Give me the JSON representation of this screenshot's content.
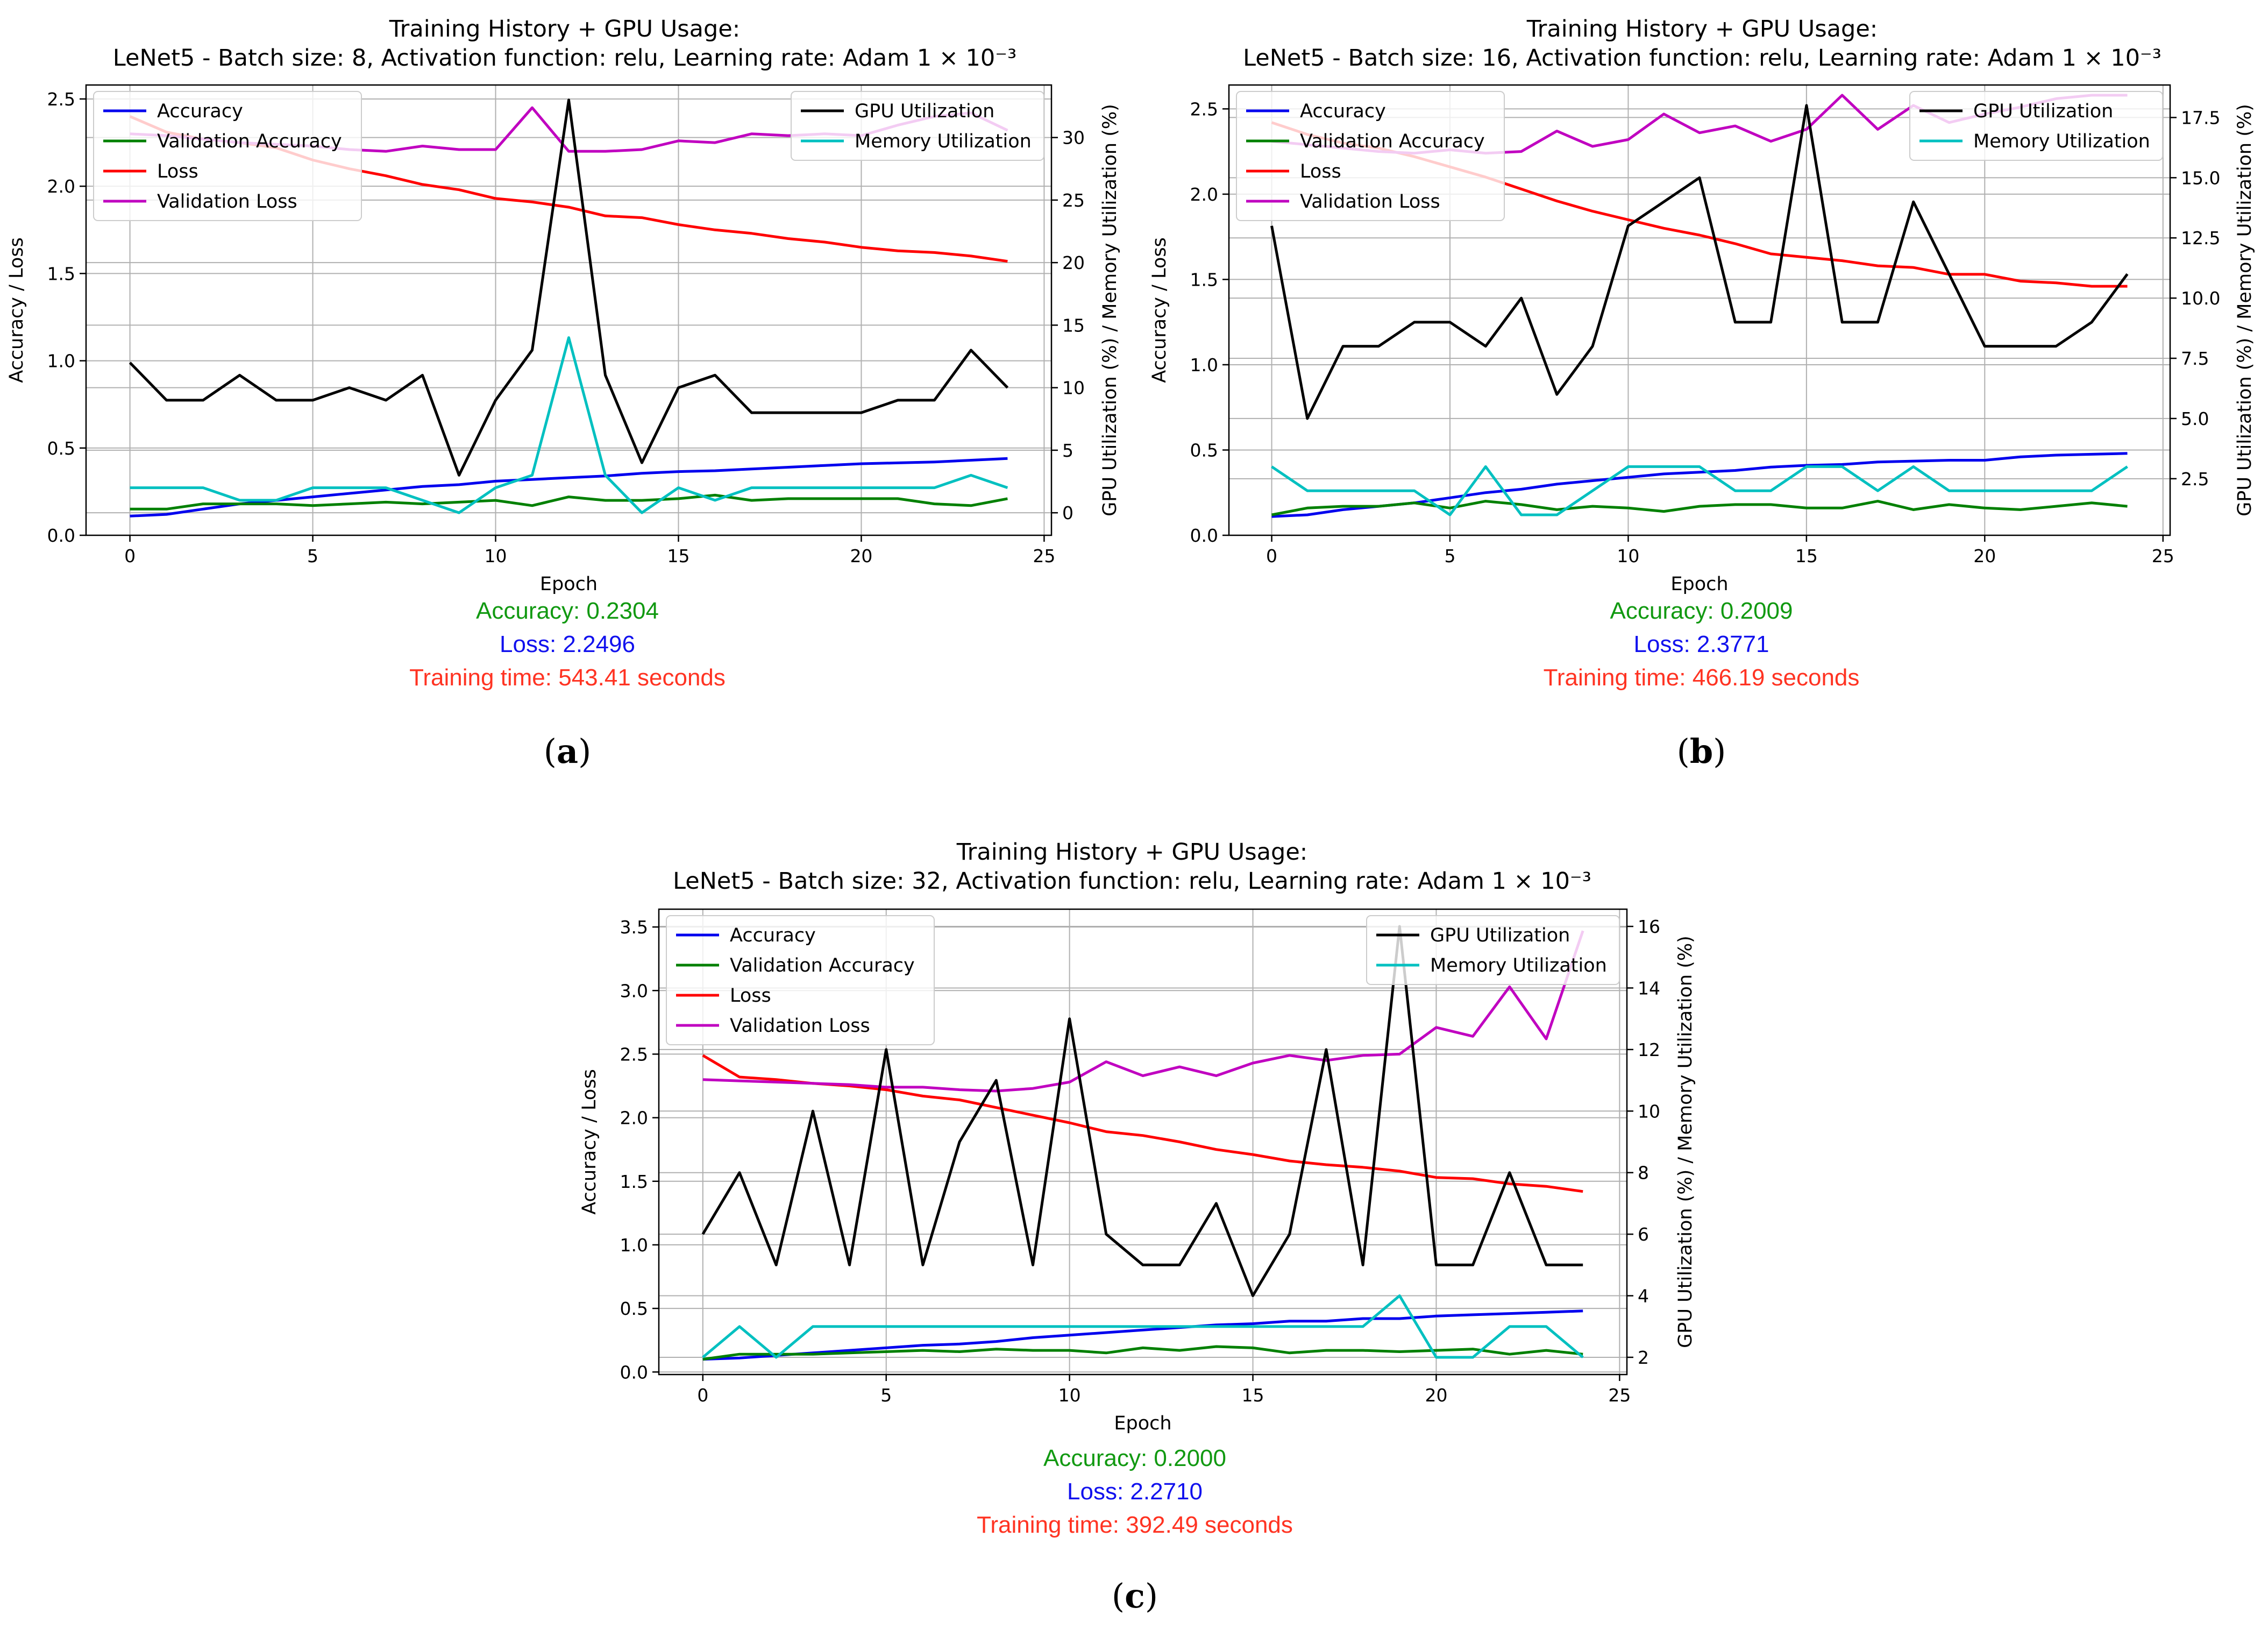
{
  "figure": {
    "panels": [
      {
        "id": "a",
        "sublabel": "a",
        "stats": {
          "accuracy": "Accuracy: 0.2304",
          "loss": "Loss: 2.2496",
          "time": "Training time: 543.41 seconds"
        },
        "colors": {
          "accuracy": "#0000ee",
          "val_accuracy": "#008000",
          "loss": "#ff0000",
          "val_loss": "#c000c0",
          "gpu": "#000000",
          "memory": "#00c0c0"
        }
      },
      {
        "id": "b",
        "sublabel": "b",
        "stats": {
          "accuracy": "Accuracy: 0.2009",
          "loss": "Loss: 2.3771",
          "time": "Training time: 466.19 seconds"
        }
      },
      {
        "id": "c",
        "sublabel": "c",
        "stats": {
          "accuracy": "Accuracy: 0.2000",
          "loss": "Loss: 2.2710",
          "time": "Training time: 392.49 seconds"
        }
      }
    ]
  },
  "chart_data": [
    {
      "type": "line",
      "title": "Training History + GPU Usage:",
      "subtitle": "LeNet5 - Batch size: 8, Activation function: relu, Learning rate: Adam 1 × 10⁻³",
      "xlabel": "Epoch",
      "ylabel": "Accuracy / Loss",
      "y2label": "GPU Utilization (%) / Memory Utilization (%)",
      "xlim": [
        -1.2,
        25.2
      ],
      "ylim": [
        0,
        2.58
      ],
      "y2lim": [
        -1.8,
        34.2
      ],
      "xticks": [
        0,
        5,
        10,
        15,
        20,
        25
      ],
      "yticks": [
        0.0,
        0.5,
        1.0,
        1.5,
        2.0,
        2.5
      ],
      "yticklabels": [
        "0.0",
        "0.5",
        "1.0",
        "1.5",
        "2.0",
        "2.5"
      ],
      "y2ticks": [
        0,
        5,
        10,
        15,
        20,
        25,
        30
      ],
      "y2ticklabels": [
        "0",
        "5",
        "10",
        "15",
        "20",
        "25",
        "30"
      ],
      "grid": true,
      "legend_left_position": "upper-left",
      "legend_right_position": "upper-right",
      "x": [
        0,
        1,
        2,
        3,
        4,
        5,
        6,
        7,
        8,
        9,
        10,
        11,
        12,
        13,
        14,
        15,
        16,
        17,
        18,
        19,
        20,
        21,
        22,
        23,
        24
      ],
      "series": [
        {
          "name": "Accuracy",
          "axis": "left",
          "color": "#0000ee",
          "values": [
            0.11,
            0.12,
            0.15,
            0.18,
            0.2,
            0.22,
            0.24,
            0.26,
            0.28,
            0.29,
            0.31,
            0.32,
            0.33,
            0.34,
            0.355,
            0.365,
            0.37,
            0.38,
            0.39,
            0.4,
            0.41,
            0.415,
            0.42,
            0.43,
            0.44
          ]
        },
        {
          "name": "Validation Accuracy",
          "axis": "left",
          "color": "#008000",
          "values": [
            0.15,
            0.15,
            0.18,
            0.18,
            0.18,
            0.17,
            0.18,
            0.19,
            0.18,
            0.19,
            0.2,
            0.17,
            0.22,
            0.2,
            0.2,
            0.21,
            0.23,
            0.2,
            0.21,
            0.21,
            0.21,
            0.21,
            0.18,
            0.17,
            0.21
          ]
        },
        {
          "name": "Loss",
          "axis": "left",
          "color": "#ff0000",
          "values": [
            2.4,
            2.31,
            2.27,
            2.25,
            2.22,
            2.15,
            2.1,
            2.06,
            2.01,
            1.98,
            1.93,
            1.91,
            1.88,
            1.83,
            1.82,
            1.78,
            1.75,
            1.73,
            1.7,
            1.68,
            1.65,
            1.63,
            1.62,
            1.6,
            1.57
          ]
        },
        {
          "name": "Validation Loss",
          "axis": "left",
          "color": "#c000c0",
          "values": [
            2.3,
            2.29,
            2.27,
            2.25,
            2.24,
            2.23,
            2.21,
            2.2,
            2.23,
            2.21,
            2.21,
            2.45,
            2.2,
            2.2,
            2.21,
            2.26,
            2.25,
            2.3,
            2.29,
            2.3,
            2.29,
            2.35,
            2.4,
            2.42,
            2.32
          ]
        },
        {
          "name": "GPU Utilization",
          "axis": "right",
          "color": "#000000",
          "values": [
            12,
            9,
            9,
            11,
            9,
            9,
            10,
            9,
            11,
            3,
            9,
            13,
            33,
            11,
            4,
            10,
            11,
            8,
            8,
            8,
            8,
            9,
            9,
            13,
            10
          ]
        },
        {
          "name": "Memory Utilization",
          "axis": "right",
          "color": "#00c0c0",
          "values": [
            2,
            2,
            2,
            1,
            1,
            2,
            2,
            2,
            1,
            0,
            2,
            3,
            14,
            3,
            0,
            2,
            1,
            2,
            2,
            2,
            2,
            2,
            2,
            3,
            2
          ]
        }
      ]
    },
    {
      "type": "line",
      "title": "Training History + GPU Usage:",
      "subtitle": "LeNet5 - Batch size: 16, Activation function: relu, Learning rate: Adam 1 × 10⁻³",
      "xlabel": "Epoch",
      "ylabel": "Accuracy / Loss",
      "y2label": "GPU Utilization (%) / Memory Utilization (%)",
      "xlim": [
        -1.2,
        25.2
      ],
      "ylim": [
        0,
        2.64
      ],
      "y2lim": [
        0.15,
        18.85
      ],
      "xticks": [
        0,
        5,
        10,
        15,
        20,
        25
      ],
      "yticks": [
        0.0,
        0.5,
        1.0,
        1.5,
        2.0,
        2.5
      ],
      "yticklabels": [
        "0.0",
        "0.5",
        "1.0",
        "1.5",
        "2.0",
        "2.5"
      ],
      "y2ticks": [
        2.5,
        5.0,
        7.5,
        10.0,
        12.5,
        15.0,
        17.5
      ],
      "y2ticklabels": [
        "2.5",
        "5.0",
        "7.5",
        "10.0",
        "12.5",
        "15.0",
        "17.5"
      ],
      "grid": true,
      "legend_left_position": "upper-left",
      "legend_right_position": "upper-right",
      "x": [
        0,
        1,
        2,
        3,
        4,
        5,
        6,
        7,
        8,
        9,
        10,
        11,
        12,
        13,
        14,
        15,
        16,
        17,
        18,
        19,
        20,
        21,
        22,
        23,
        24
      ],
      "series": [
        {
          "name": "Accuracy",
          "axis": "left",
          "color": "#0000ee",
          "values": [
            0.11,
            0.12,
            0.15,
            0.17,
            0.19,
            0.22,
            0.25,
            0.27,
            0.3,
            0.32,
            0.34,
            0.36,
            0.37,
            0.38,
            0.4,
            0.41,
            0.415,
            0.43,
            0.435,
            0.44,
            0.44,
            0.46,
            0.47,
            0.475,
            0.48
          ]
        },
        {
          "name": "Validation Accuracy",
          "axis": "left",
          "color": "#008000",
          "values": [
            0.12,
            0.16,
            0.17,
            0.17,
            0.19,
            0.16,
            0.2,
            0.18,
            0.15,
            0.17,
            0.16,
            0.14,
            0.17,
            0.18,
            0.18,
            0.16,
            0.16,
            0.2,
            0.15,
            0.18,
            0.16,
            0.15,
            0.17,
            0.19,
            0.17
          ]
        },
        {
          "name": "Loss",
          "axis": "left",
          "color": "#ff0000",
          "values": [
            2.42,
            2.35,
            2.3,
            2.27,
            2.22,
            2.16,
            2.1,
            2.03,
            1.96,
            1.9,
            1.85,
            1.8,
            1.76,
            1.71,
            1.65,
            1.63,
            1.61,
            1.58,
            1.57,
            1.53,
            1.53,
            1.49,
            1.48,
            1.46,
            1.46
          ]
        },
        {
          "name": "Validation Loss",
          "axis": "left",
          "color": "#c000c0",
          "values": [
            2.31,
            2.29,
            2.27,
            2.25,
            2.24,
            2.26,
            2.24,
            2.25,
            2.37,
            2.28,
            2.32,
            2.47,
            2.36,
            2.4,
            2.31,
            2.38,
            2.58,
            2.38,
            2.52,
            2.42,
            2.47,
            2.51,
            2.56,
            2.58,
            2.58
          ]
        },
        {
          "name": "GPU Utilization",
          "axis": "right",
          "color": "#000000",
          "values": [
            13,
            5,
            8,
            8,
            9,
            9,
            8,
            10,
            6,
            8,
            13,
            14,
            15,
            9,
            9,
            18,
            9,
            9,
            14,
            11,
            8,
            8,
            8,
            9,
            11
          ]
        },
        {
          "name": "Memory Utilization",
          "axis": "right",
          "color": "#00c0c0",
          "values": [
            3,
            2,
            2,
            2,
            2,
            1,
            3,
            1,
            1,
            2,
            3,
            3,
            3,
            2,
            2,
            3,
            3,
            2,
            3,
            2,
            2,
            2,
            2,
            2,
            3
          ]
        }
      ]
    },
    {
      "type": "line",
      "title": "Training History + GPU Usage:",
      "subtitle": "LeNet5 - Batch size: 32, Activation function: relu, Learning rate: Adam 1 × 10⁻³",
      "xlabel": "Epoch",
      "ylabel": "Accuracy / Loss",
      "y2label": "GPU Utilization (%) / Memory Utilization (%)",
      "xlim": [
        -1.2,
        25.2
      ],
      "ylim": [
        -0.02,
        3.64
      ],
      "y2lim": [
        1.44,
        16.56
      ],
      "xticks": [
        0,
        5,
        10,
        15,
        20,
        25
      ],
      "yticks": [
        0.0,
        0.5,
        1.0,
        1.5,
        2.0,
        2.5,
        3.0,
        3.5
      ],
      "yticklabels": [
        "0.0",
        "0.5",
        "1.0",
        "1.5",
        "2.0",
        "2.5",
        "3.0",
        "3.5"
      ],
      "y2ticks": [
        2,
        4,
        6,
        8,
        10,
        12,
        14,
        16
      ],
      "y2ticklabels": [
        "2",
        "4",
        "6",
        "8",
        "10",
        "12",
        "14",
        "16"
      ],
      "grid": true,
      "legend_left_position": "upper-left",
      "legend_right_position": "upper-right",
      "x": [
        0,
        1,
        2,
        3,
        4,
        5,
        6,
        7,
        8,
        9,
        10,
        11,
        12,
        13,
        14,
        15,
        16,
        17,
        18,
        19,
        20,
        21,
        22,
        23,
        24
      ],
      "series": [
        {
          "name": "Accuracy",
          "axis": "left",
          "color": "#0000ee",
          "values": [
            0.1,
            0.11,
            0.13,
            0.15,
            0.17,
            0.19,
            0.21,
            0.22,
            0.24,
            0.27,
            0.29,
            0.31,
            0.33,
            0.35,
            0.37,
            0.38,
            0.4,
            0.4,
            0.42,
            0.42,
            0.44,
            0.45,
            0.46,
            0.47,
            0.48
          ]
        },
        {
          "name": "Validation Accuracy",
          "axis": "left",
          "color": "#008000",
          "values": [
            0.1,
            0.14,
            0.14,
            0.14,
            0.15,
            0.16,
            0.17,
            0.16,
            0.18,
            0.17,
            0.17,
            0.15,
            0.19,
            0.17,
            0.2,
            0.19,
            0.15,
            0.17,
            0.17,
            0.16,
            0.17,
            0.18,
            0.14,
            0.17,
            0.14
          ]
        },
        {
          "name": "Loss",
          "axis": "left",
          "color": "#ff0000",
          "values": [
            2.49,
            2.32,
            2.3,
            2.27,
            2.25,
            2.22,
            2.17,
            2.14,
            2.08,
            2.02,
            1.96,
            1.89,
            1.86,
            1.81,
            1.75,
            1.71,
            1.66,
            1.63,
            1.61,
            1.58,
            1.53,
            1.52,
            1.48,
            1.46,
            1.42
          ]
        },
        {
          "name": "Validation Loss",
          "axis": "left",
          "color": "#c000c0",
          "values": [
            2.3,
            2.29,
            2.28,
            2.27,
            2.26,
            2.24,
            2.24,
            2.22,
            2.21,
            2.23,
            2.28,
            2.44,
            2.33,
            2.4,
            2.33,
            2.43,
            2.49,
            2.45,
            2.49,
            2.5,
            2.71,
            2.64,
            3.03,
            2.62,
            3.47
          ]
        },
        {
          "name": "GPU Utilization",
          "axis": "right",
          "color": "#000000",
          "values": [
            6,
            8,
            5,
            10,
            5,
            12,
            5,
            9,
            11,
            5,
            13,
            6,
            5,
            5,
            7,
            4,
            6,
            12,
            5,
            16,
            5,
            5,
            8,
            5,
            5
          ]
        },
        {
          "name": "Memory Utilization",
          "axis": "right",
          "color": "#00c0c0",
          "values": [
            2,
            3,
            2,
            3,
            3,
            3,
            3,
            3,
            3,
            3,
            3,
            3,
            3,
            3,
            3,
            3,
            3,
            3,
            3,
            4,
            2,
            2,
            3,
            3,
            2
          ]
        }
      ]
    }
  ]
}
